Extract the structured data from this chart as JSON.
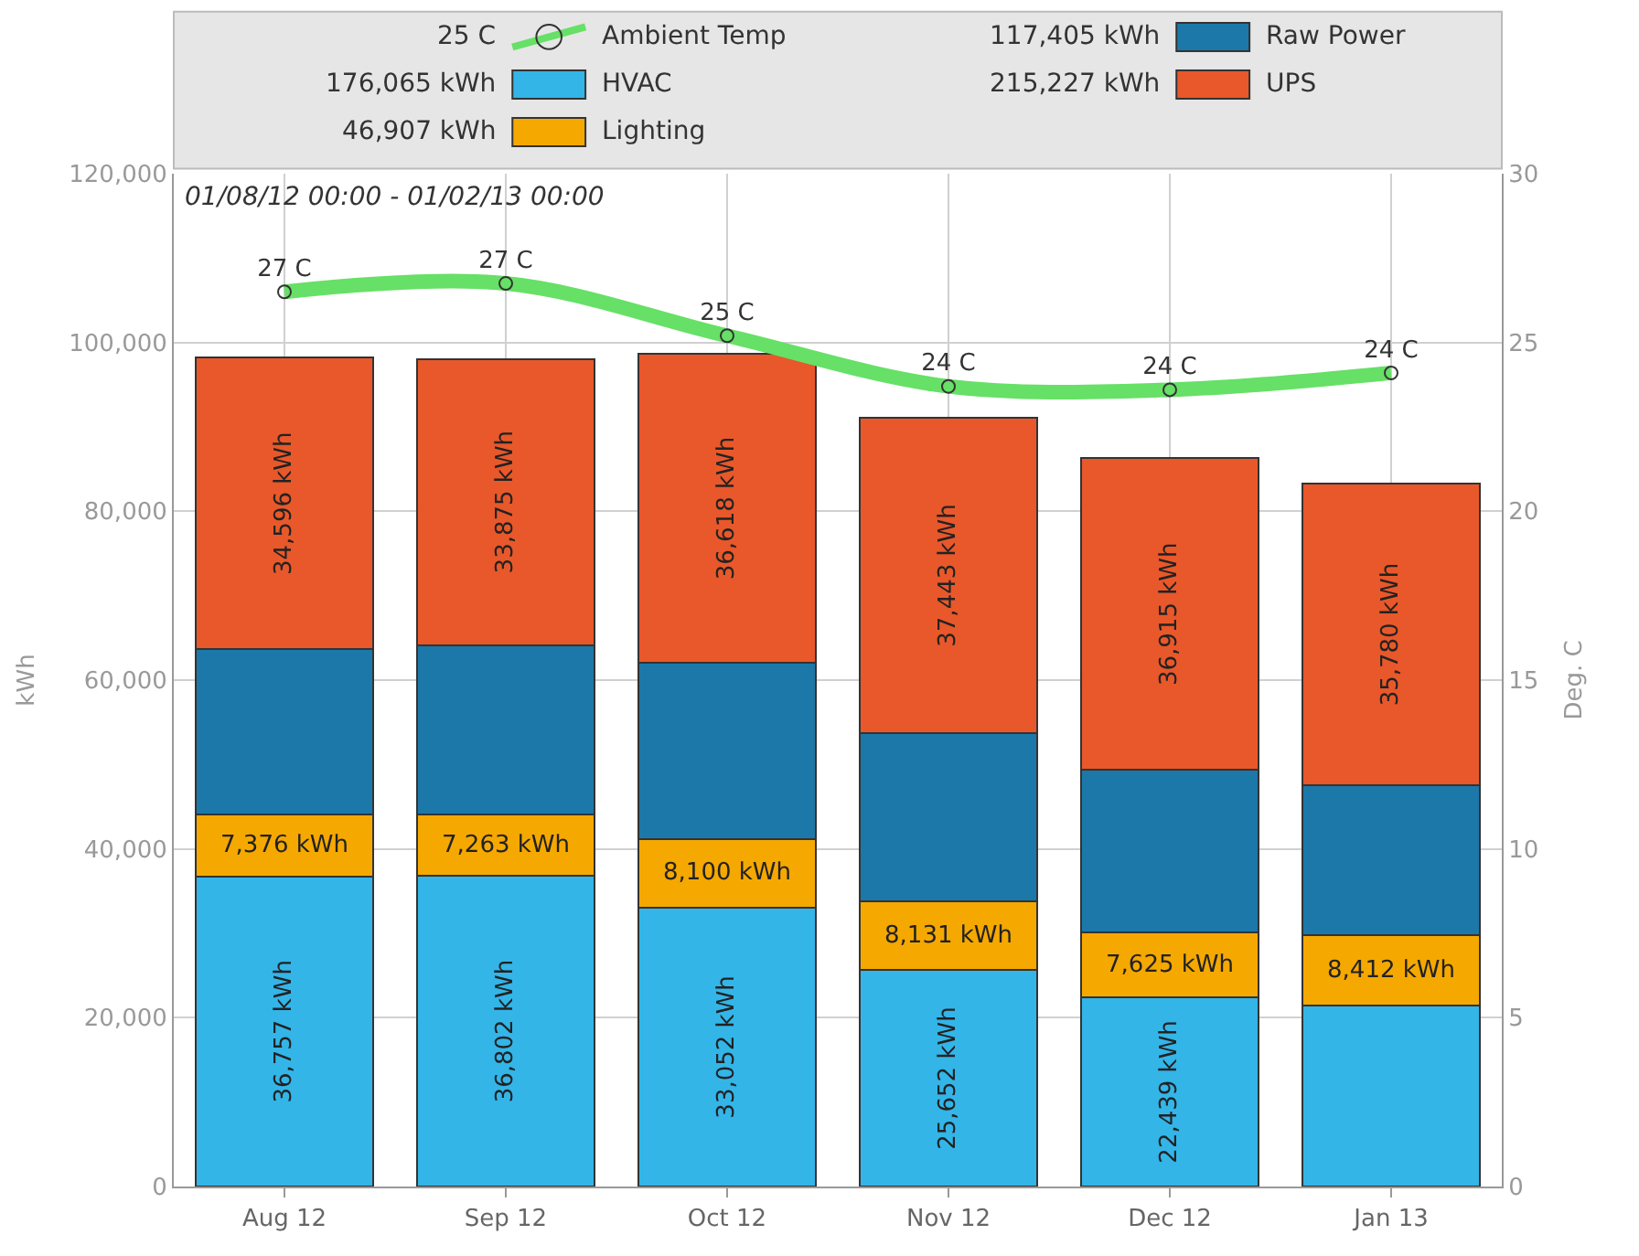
{
  "chart_data": {
    "type": "bar",
    "stacked": true,
    "categories": [
      "Aug 12",
      "Sep 12",
      "Oct 12",
      "Nov 12",
      "Dec 12",
      "Jan 13"
    ],
    "ylabel": "kWh",
    "y2label": "Deg. C",
    "ylim": [
      0,
      120000
    ],
    "yticks": [
      {
        "value": 0,
        "label": "0"
      },
      {
        "value": 20000,
        "label": "20,000"
      },
      {
        "value": 40000,
        "label": "40,000"
      },
      {
        "value": 60000,
        "label": "60,000"
      },
      {
        "value": 80000,
        "label": "80,000"
      },
      {
        "value": 100000,
        "label": "100,000"
      },
      {
        "value": 120000,
        "label": "120,000"
      }
    ],
    "y2lim": [
      0,
      30
    ],
    "y2ticks": [
      0,
      5,
      10,
      15,
      20,
      25,
      30
    ],
    "grid": true,
    "legend": "top",
    "marker": "circle",
    "annotations": [
      "01/08/12 00:00 - 01/02/13 00:00",
      "25 C",
      "176,065 kWh",
      "46,907 kWh",
      "117,405 kWh",
      "215,227 kWh"
    ],
    "series": [
      {
        "name": "Ambient Temp",
        "type": "line",
        "axis": "y2",
        "color": "#66e066",
        "values": [
          26.5,
          26.75,
          25.2,
          23.7,
          23.6,
          24.1
        ],
        "value_labels": [
          "27 C",
          "27 C",
          "25 C",
          "24 C",
          "24 C",
          "24 C"
        ]
      },
      {
        "name": "HVAC",
        "color": "#33b5e8",
        "values": [
          36757,
          36802,
          33052,
          25652,
          22439,
          21400
        ],
        "value_labels": [
          "36,757 kWh",
          "36,802 kWh",
          "33,052 kWh",
          "25,652 kWh",
          "22,439 kWh",
          null
        ]
      },
      {
        "name": "Lighting",
        "color": "#f5a800",
        "values": [
          7376,
          7263,
          8100,
          8131,
          7625,
          8412
        ],
        "value_labels": [
          "7,376 kWh",
          "7,263 kWh",
          "8,100 kWh",
          "8,131 kWh",
          "7,625 kWh",
          "8,412 kWh"
        ]
      },
      {
        "name": "Raw Power",
        "color": "#1c78a8",
        "values": [
          19500,
          20100,
          20900,
          19900,
          19300,
          17700
        ]
      },
      {
        "name": "UPS",
        "color": "#e8582a",
        "values": [
          34596,
          33875,
          36618,
          37443,
          36915,
          35780
        ],
        "value_labels": [
          "34,596 kWh",
          "33,875 kWh",
          "36,618 kWh",
          "37,443 kWh",
          "36,915 kWh",
          "35,780 kWh"
        ]
      }
    ]
  }
}
